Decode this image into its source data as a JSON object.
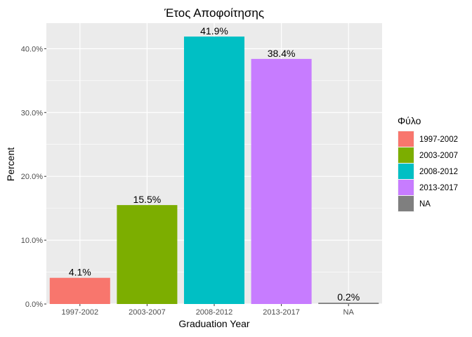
{
  "chart_data": {
    "type": "bar",
    "title": "Έτος Αποφοίτησης",
    "xlabel": "Graduation Year",
    "ylabel": "Percent",
    "categories": [
      "1997-2002",
      "2003-2007",
      "2008-2012",
      "2013-2017",
      "NA"
    ],
    "values": [
      4.1,
      15.5,
      41.9,
      38.4,
      0.2
    ],
    "data_labels": [
      "4.1%",
      "15.5%",
      "41.9%",
      "38.4%",
      "0.2%"
    ],
    "colors": [
      "#F8766D",
      "#7CAE00",
      "#00BFC4",
      "#C77CFF",
      "#7F7F7F"
    ],
    "ylim": [
      0,
      44
    ],
    "yticks": [
      0,
      10,
      20,
      30,
      40
    ],
    "ytick_labels": [
      "0.0%",
      "10.0%",
      "20.0%",
      "30.0%",
      "40.0%"
    ],
    "grid": true,
    "panel_background": "#EBEBEB",
    "legend": {
      "title": "Φύλο",
      "position": "right",
      "entries": [
        "1997-2002",
        "2003-2007",
        "2008-2012",
        "2013-2017",
        "NA"
      ]
    }
  }
}
